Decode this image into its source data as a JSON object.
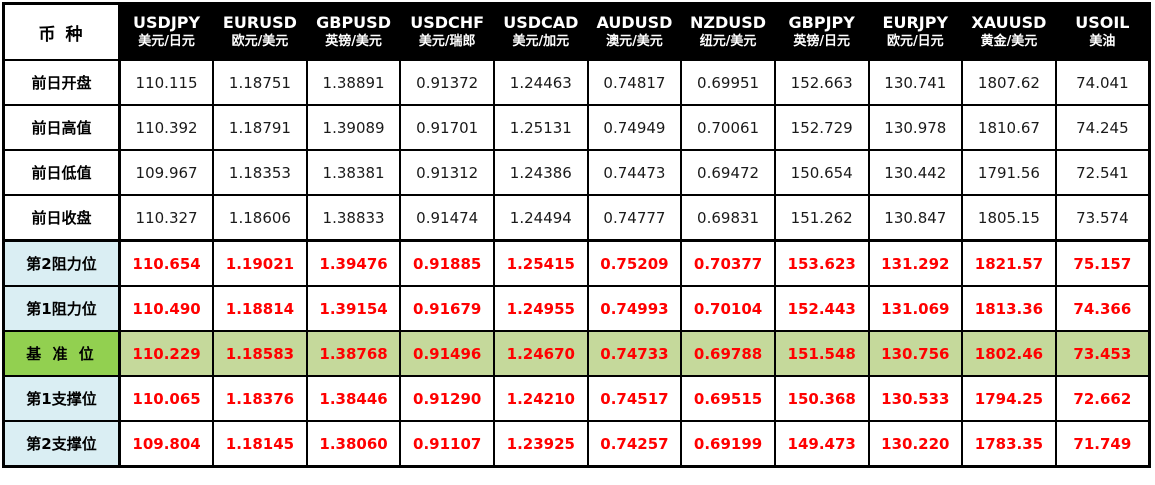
{
  "table": {
    "corner_label": "币 种",
    "columns": [
      {
        "code": "USDJPY",
        "name": "美元/日元"
      },
      {
        "code": "EURUSD",
        "name": "欧元/美元"
      },
      {
        "code": "GBPUSD",
        "name": "英镑/美元"
      },
      {
        "code": "USDCHF",
        "name": "美元/瑞郎"
      },
      {
        "code": "USDCAD",
        "name": "美元/加元"
      },
      {
        "code": "AUDUSD",
        "name": "澳元/美元"
      },
      {
        "code": "NZDUSD",
        "name": "纽元/美元"
      },
      {
        "code": "GBPJPY",
        "name": "英镑/日元"
      },
      {
        "code": "EURJPY",
        "name": "欧元/日元"
      },
      {
        "code": "XAUUSD",
        "name": "黄金/美元"
      },
      {
        "code": "USOIL",
        "name": "美油"
      }
    ],
    "rows": [
      {
        "label": "前日开盘",
        "type": "plain",
        "values": [
          "110.115",
          "1.18751",
          "1.38891",
          "0.91372",
          "1.24463",
          "0.74817",
          "0.69951",
          "152.663",
          "130.741",
          "1807.62",
          "74.041"
        ]
      },
      {
        "label": "前日高值",
        "type": "plain",
        "values": [
          "110.392",
          "1.18791",
          "1.39089",
          "0.91701",
          "1.25131",
          "0.74949",
          "0.70061",
          "152.729",
          "130.978",
          "1810.67",
          "74.245"
        ]
      },
      {
        "label": "前日低值",
        "type": "plain",
        "values": [
          "109.967",
          "1.18353",
          "1.38381",
          "0.91312",
          "1.24386",
          "0.74473",
          "0.69472",
          "150.654",
          "130.442",
          "1791.56",
          "72.541"
        ]
      },
      {
        "label": "前日收盘",
        "type": "plain",
        "values": [
          "110.327",
          "1.18606",
          "1.38833",
          "0.91474",
          "1.24494",
          "0.74777",
          "0.69831",
          "151.262",
          "130.847",
          "1805.15",
          "73.574"
        ]
      },
      {
        "label": "第2阻力位",
        "type": "level",
        "values": [
          "110.654",
          "1.19021",
          "1.39476",
          "0.91885",
          "1.25415",
          "0.75209",
          "0.70377",
          "153.623",
          "131.292",
          "1821.57",
          "75.157"
        ]
      },
      {
        "label": "第1阻力位",
        "type": "level",
        "values": [
          "110.490",
          "1.18814",
          "1.39154",
          "0.91679",
          "1.24955",
          "0.74993",
          "0.70104",
          "152.443",
          "131.069",
          "1813.36",
          "74.366"
        ]
      },
      {
        "label": "基 准 位",
        "type": "pivot",
        "values": [
          "110.229",
          "1.18583",
          "1.38768",
          "0.91496",
          "1.24670",
          "0.74733",
          "0.69788",
          "151.548",
          "130.756",
          "1802.46",
          "73.453"
        ]
      },
      {
        "label": "第1支撑位",
        "type": "level",
        "values": [
          "110.065",
          "1.18376",
          "1.38446",
          "0.91290",
          "1.24210",
          "0.74517",
          "0.69515",
          "150.368",
          "130.533",
          "1794.25",
          "72.662"
        ]
      },
      {
        "label": "第2支撑位",
        "type": "level",
        "values": [
          "109.804",
          "1.18145",
          "1.38060",
          "0.91107",
          "1.23925",
          "0.74257",
          "0.69199",
          "149.473",
          "130.220",
          "1783.35",
          "71.749"
        ]
      }
    ],
    "colors": {
      "header_bg": "#000000",
      "header_text": "#ffffff",
      "level_label_bg": "#daeef3",
      "pivot_label_bg": "#92d050",
      "pivot_row_bg": "#c5d99b",
      "level_value_text": "#ff0000",
      "plain_value_text": "#1a1a1a"
    }
  },
  "chart_data": {
    "type": "table",
    "title": "币种 前日行情与阻力/支撑位",
    "columns": [
      "USDJPY 美元/日元",
      "EURUSD 欧元/美元",
      "GBPUSD 英镑/美元",
      "USDCHF 美元/瑞郎",
      "USDCAD 美元/加元",
      "AUDUSD 澳元/美元",
      "NZDUSD 纽元/美元",
      "GBPJPY 英镑/日元",
      "EURJPY 欧元/日元",
      "XAUUSD 黄金/美元",
      "USOIL 美油"
    ],
    "row_labels": [
      "前日开盘",
      "前日高值",
      "前日低值",
      "前日收盘",
      "第2阻力位",
      "第1阻力位",
      "基 准 位",
      "第1支撑位",
      "第2支撑位"
    ],
    "values": [
      [
        110.115,
        1.18751,
        1.38891,
        0.91372,
        1.24463,
        0.74817,
        0.69951,
        152.663,
        130.741,
        1807.62,
        74.041
      ],
      [
        110.392,
        1.18791,
        1.39089,
        0.91701,
        1.25131,
        0.74949,
        0.70061,
        152.729,
        130.978,
        1810.67,
        74.245
      ],
      [
        109.967,
        1.18353,
        1.38381,
        0.91312,
        1.24386,
        0.74473,
        0.69472,
        150.654,
        130.442,
        1791.56,
        72.541
      ],
      [
        110.327,
        1.18606,
        1.38833,
        0.91474,
        1.24494,
        0.74777,
        0.69831,
        151.262,
        130.847,
        1805.15,
        73.574
      ],
      [
        110.654,
        1.19021,
        1.39476,
        0.91885,
        1.25415,
        0.75209,
        0.70377,
        153.623,
        131.292,
        1821.57,
        75.157
      ],
      [
        110.49,
        1.18814,
        1.39154,
        0.91679,
        1.24955,
        0.74993,
        0.70104,
        152.443,
        131.069,
        1813.36,
        74.366
      ],
      [
        110.229,
        1.18583,
        1.38768,
        0.91496,
        1.2467,
        0.74733,
        0.69788,
        151.548,
        130.756,
        1802.46,
        73.453
      ],
      [
        110.065,
        1.18376,
        1.38446,
        0.9129,
        1.2421,
        0.74517,
        0.69515,
        150.368,
        130.533,
        1794.25,
        72.662
      ],
      [
        109.804,
        1.18145,
        1.3806,
        0.91107,
        1.23925,
        0.74257,
        0.69199,
        149.473,
        130.22,
        1783.35,
        71.749
      ]
    ]
  }
}
